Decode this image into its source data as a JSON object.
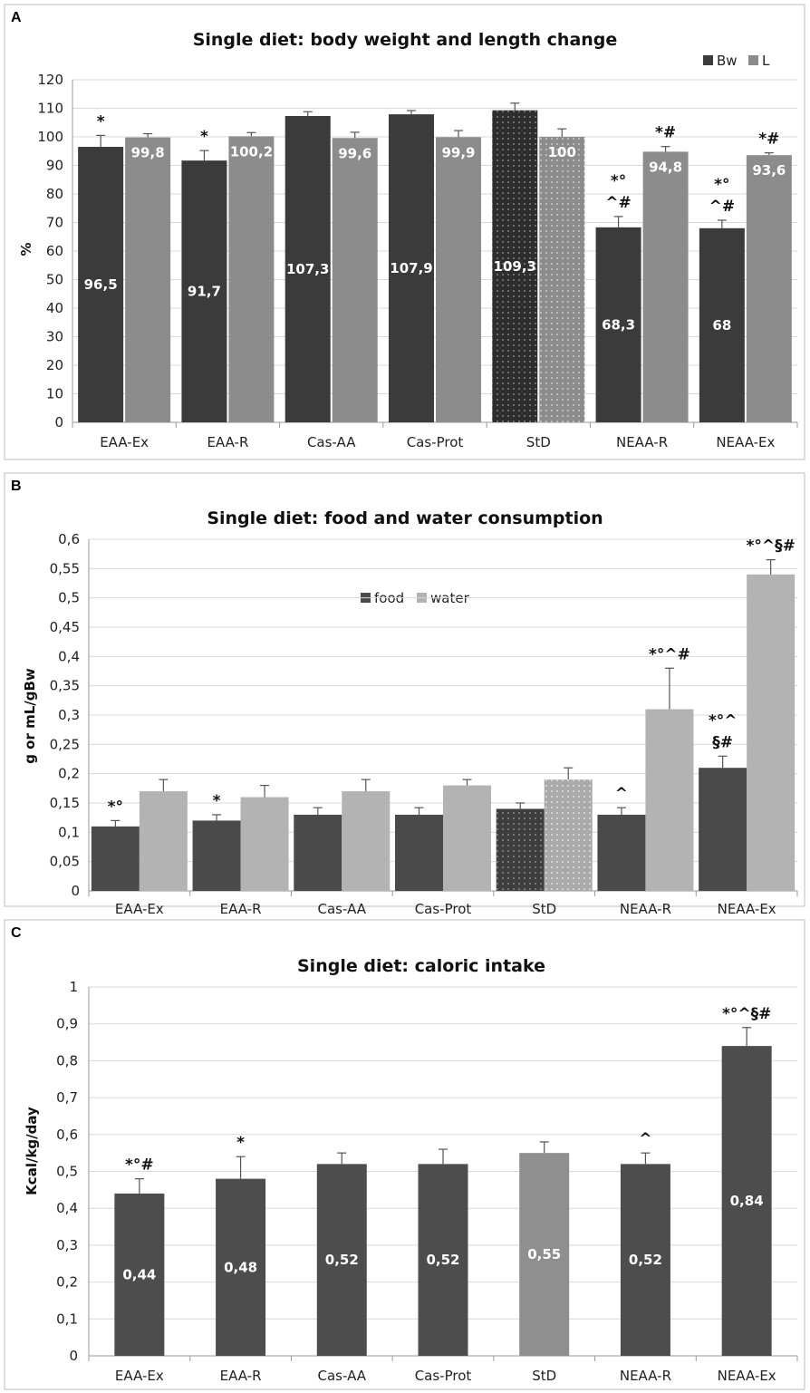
{
  "chart_data": [
    {
      "panel": "A",
      "type": "bar",
      "title": "Single diet: body weight and length change",
      "ylabel": "%",
      "xlabel": "",
      "ylim": [
        0,
        120
      ],
      "ytick_step": 10,
      "grid": true,
      "legend_position": "top-right",
      "categories": [
        "EAA-Ex",
        "EAA-R",
        "Cas-AA",
        "Cas-Prot",
        "StD",
        "NEAA-R",
        "NEAA-Ex"
      ],
      "series": [
        {
          "name": "Bw",
          "color": "#3b3b3b",
          "values": [
            96.5,
            91.7,
            107.3,
            107.9,
            109.3,
            68.3,
            68
          ],
          "errors": [
            4,
            3.5,
            1.5,
            1.3,
            2.5,
            3.8,
            2.8
          ],
          "labels": [
            "96,5",
            "91,7",
            "107,3",
            "107,9",
            "109,3",
            "68,3",
            "68"
          ]
        },
        {
          "name": "L",
          "color": "#8c8c8c",
          "values": [
            99.8,
            100.2,
            99.6,
            99.9,
            100,
            94.8,
            93.6
          ],
          "errors": [
            1.3,
            1.3,
            2,
            2.3,
            2.8,
            1.8,
            0.8
          ],
          "labels": [
            "99,8",
            "100,2",
            "99,6",
            "99,9",
            "100",
            "94,8",
            "93,6"
          ]
        }
      ],
      "dotted_category": "StD",
      "bar_label_position": [
        "middle",
        "top"
      ],
      "annotations": [
        {
          "category": "EAA-Ex",
          "series": "Bw",
          "lines": [
            "*"
          ]
        },
        {
          "category": "EAA-R",
          "series": "Bw",
          "lines": [
            "*"
          ]
        },
        {
          "category": "NEAA-R",
          "series": "Bw",
          "lines": [
            "*°",
            "^#"
          ]
        },
        {
          "category": "NEAA-R",
          "series": "L",
          "lines": [
            "*#"
          ]
        },
        {
          "category": "NEAA-Ex",
          "series": "Bw",
          "lines": [
            "*°",
            "^#"
          ]
        },
        {
          "category": "NEAA-Ex",
          "series": "L",
          "lines": [
            "*#"
          ]
        }
      ]
    },
    {
      "panel": "B",
      "type": "bar",
      "title": "Single diet: food and water consumption",
      "ylabel": "g or mL/gBw",
      "xlabel": "",
      "ylim": [
        0,
        0.6
      ],
      "ytick_step": 0.05,
      "grid": true,
      "legend_position": "top-center",
      "categories": [
        "EAA-Ex",
        "EAA-R",
        "Cas-AA",
        "Cas-Prot",
        "StD",
        "NEAA-R",
        "NEAA-Ex"
      ],
      "series": [
        {
          "name": "food",
          "color": "#4a4a4a",
          "values": [
            0.11,
            0.12,
            0.13,
            0.13,
            0.14,
            0.13,
            0.21
          ],
          "errors": [
            0.01,
            0.01,
            0.012,
            0.012,
            0.01,
            0.012,
            0.02
          ]
        },
        {
          "name": "water",
          "color": "#b3b3b3",
          "values": [
            0.17,
            0.16,
            0.17,
            0.18,
            0.19,
            0.31,
            0.54
          ],
          "errors": [
            0.02,
            0.02,
            0.02,
            0.01,
            0.02,
            0.07,
            0.025
          ]
        }
      ],
      "dotted_category": "StD",
      "annotations": [
        {
          "category": "EAA-Ex",
          "series": "food",
          "lines": [
            "*°"
          ]
        },
        {
          "category": "EAA-R",
          "series": "food",
          "lines": [
            "*"
          ]
        },
        {
          "category": "NEAA-R",
          "series": "food",
          "lines": [
            "^"
          ]
        },
        {
          "category": "NEAA-R",
          "series": "water",
          "lines": [
            "*°^#"
          ]
        },
        {
          "category": "NEAA-Ex",
          "series": "food",
          "lines": [
            "*°^",
            "§#"
          ]
        },
        {
          "category": "NEAA-Ex",
          "series": "water",
          "lines": [
            "*°^§#"
          ]
        }
      ]
    },
    {
      "panel": "C",
      "type": "bar",
      "title": "Single diet: caloric intake",
      "ylabel": "Kcal/kg/day",
      "xlabel": "",
      "ylim": [
        0,
        1
      ],
      "ytick_step": 0.1,
      "grid": true,
      "categories": [
        "EAA-Ex",
        "EAA-R",
        "Cas-AA",
        "Cas-Prot",
        "StD",
        "NEAA-R",
        "NEAA-Ex"
      ],
      "series": [
        {
          "color": "#4d4d4d",
          "highlight_color": "#8f8f8f",
          "highlight_category": "StD",
          "values": [
            0.44,
            0.48,
            0.52,
            0.52,
            0.55,
            0.52,
            0.84
          ],
          "errors": [
            0.04,
            0.06,
            0.03,
            0.04,
            0.03,
            0.03,
            0.05
          ],
          "labels": [
            "0,44",
            "0,48",
            "0,52",
            "0,52",
            "0,55",
            "0,52",
            "0,84"
          ]
        }
      ],
      "annotations": [
        {
          "category": "EAA-Ex",
          "lines": [
            "*°#"
          ]
        },
        {
          "category": "EAA-R",
          "lines": [
            "*"
          ]
        },
        {
          "category": "NEAA-R",
          "lines": [
            "^"
          ]
        },
        {
          "category": "NEAA-Ex",
          "lines": [
            "*°^§#"
          ]
        }
      ]
    }
  ]
}
